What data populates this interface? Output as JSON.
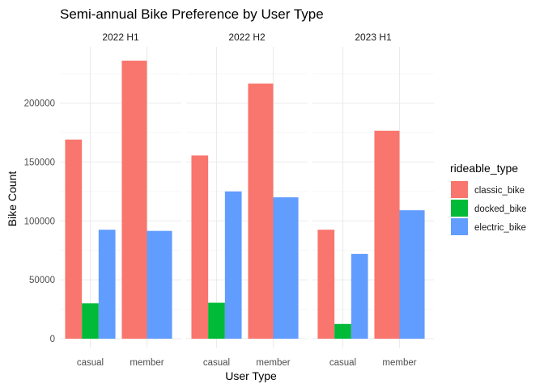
{
  "chart_data": {
    "type": "bar",
    "title": "Semi-annual Bike Preference by User Type",
    "xlabel": "User Type",
    "ylabel": "Bike Count",
    "ylim": [
      0,
      240000
    ],
    "yticks": [
      0,
      50000,
      100000,
      150000,
      200000
    ],
    "grid": true,
    "legend_position": "right",
    "legend_title": "rideable_type",
    "categories": [
      "casual",
      "member"
    ],
    "panels": [
      {
        "name": "2022 H1",
        "series": [
          {
            "name": "classic_bike",
            "values": [
              169000,
              236000
            ]
          },
          {
            "name": "docked_bike",
            "values": [
              30000,
              null
            ]
          },
          {
            "name": "electric_bike",
            "values": [
              92500,
              91500
            ]
          }
        ]
      },
      {
        "name": "2022 H2",
        "series": [
          {
            "name": "classic_bike",
            "values": [
              155500,
              216500
            ]
          },
          {
            "name": "docked_bike",
            "values": [
              30500,
              null
            ]
          },
          {
            "name": "electric_bike",
            "values": [
              125000,
              120000
            ]
          }
        ]
      },
      {
        "name": "2023 H1",
        "series": [
          {
            "name": "classic_bike",
            "values": [
              92500,
              176500
            ]
          },
          {
            "name": "docked_bike",
            "values": [
              12500,
              null
            ]
          },
          {
            "name": "electric_bike",
            "values": [
              72000,
              109000
            ]
          }
        ]
      }
    ],
    "colors": {
      "classic_bike": "#F8766D",
      "docked_bike": "#00BA38",
      "electric_bike": "#619CFF"
    }
  }
}
